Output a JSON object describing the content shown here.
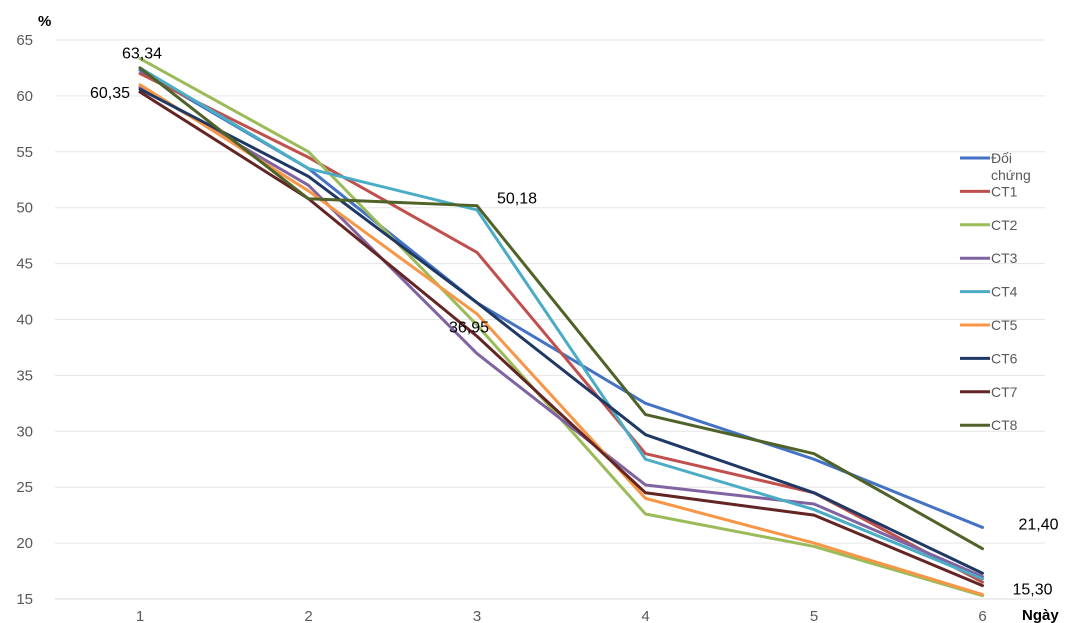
{
  "chart_data": {
    "type": "line",
    "title": "",
    "xlabel": "Ngày",
    "ylabel": "%",
    "x": [
      1,
      2,
      3,
      4,
      5,
      6
    ],
    "ylim": [
      15,
      65
    ],
    "yticks": [
      15,
      20,
      25,
      30,
      35,
      40,
      45,
      50,
      55,
      60,
      65
    ],
    "grid": true,
    "legend_position": "right",
    "series": [
      {
        "name": "Đối chứng",
        "color": "#4472c4",
        "values": [
          62.3,
          53.5,
          41.5,
          32.5,
          27.5,
          21.4
        ]
      },
      {
        "name": "CT1",
        "color": "#c0504d",
        "values": [
          62.0,
          54.5,
          46.0,
          28.0,
          24.5,
          16.5
        ]
      },
      {
        "name": "CT2",
        "color": "#9bbb59",
        "values": [
          63.34,
          55.0,
          39.5,
          22.6,
          19.7,
          15.3
        ]
      },
      {
        "name": "CT3",
        "color": "#8064a2",
        "values": [
          60.8,
          52.0,
          36.95,
          25.2,
          23.5,
          17.0
        ]
      },
      {
        "name": "CT4",
        "color": "#4bacc6",
        "values": [
          62.5,
          53.5,
          49.8,
          27.5,
          23.0,
          16.8
        ]
      },
      {
        "name": "CT5",
        "color": "#f79646",
        "values": [
          61.0,
          51.5,
          40.5,
          24.0,
          20.0,
          15.4
        ]
      },
      {
        "name": "CT6",
        "color": "#1f3864",
        "values": [
          60.6,
          52.8,
          41.5,
          29.7,
          24.5,
          17.3
        ]
      },
      {
        "name": "CT7",
        "color": "#632523",
        "values": [
          60.35,
          50.8,
          38.5,
          24.5,
          22.5,
          16.2
        ]
      },
      {
        "name": "CT8",
        "color": "#4f6228",
        "values": [
          62.5,
          50.8,
          50.18,
          31.5,
          28.0,
          19.5
        ]
      }
    ],
    "annotations": [
      {
        "text": "63,34",
        "x": 1,
        "y": 63.34
      },
      {
        "text": "60,35",
        "x": 1,
        "y": 60.35
      },
      {
        "text": "50,18",
        "x": 3,
        "y": 50.18
      },
      {
        "text": "36,95",
        "x": 3,
        "y": 36.95
      },
      {
        "text": "21,40",
        "x": 6,
        "y": 21.4
      },
      {
        "text": "15,30",
        "x": 6,
        "y": 15.3
      }
    ]
  }
}
